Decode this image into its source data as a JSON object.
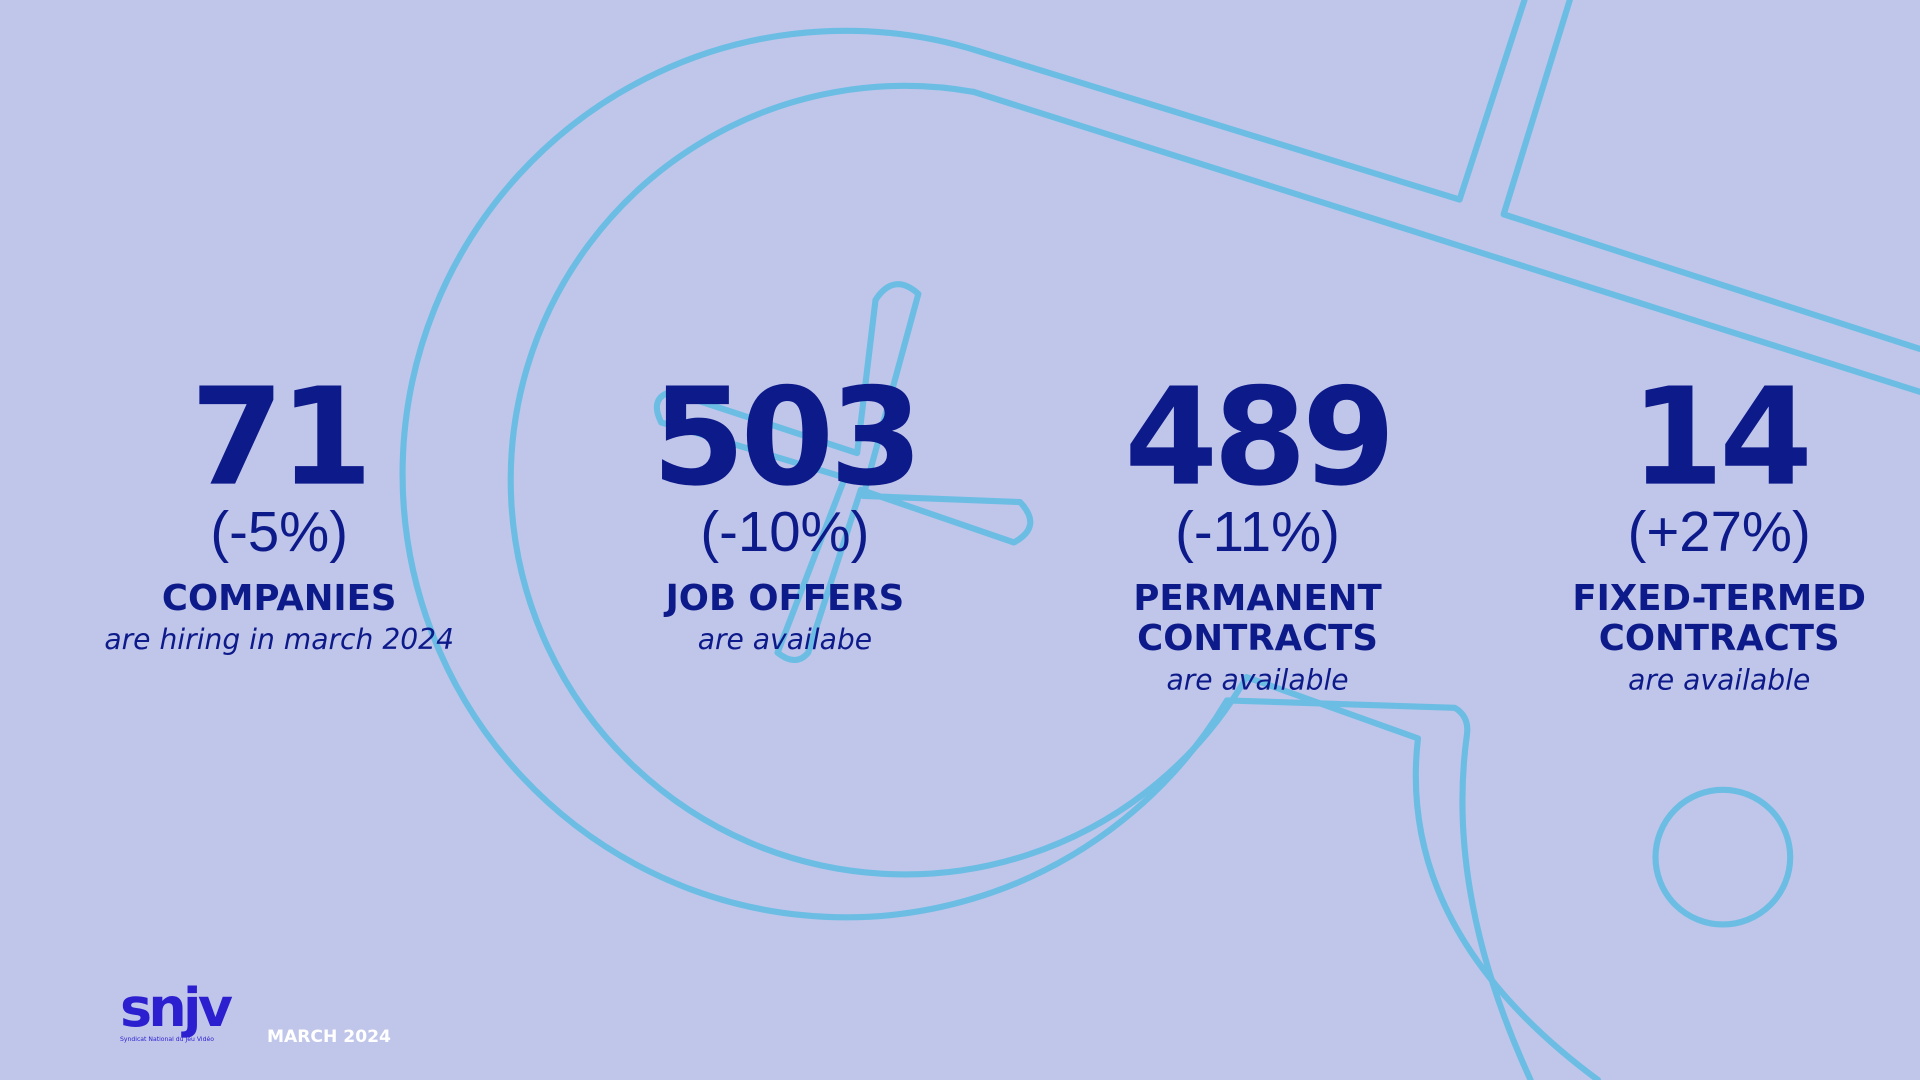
{
  "stats": [
    {
      "value": 71,
      "change": "(-5%)",
      "label": [
        "COMPANIES"
      ],
      "caption": "are hiring in march 2024"
    },
    {
      "value": 503,
      "change": "(-10%)",
      "label": [
        "JOB OFFERS"
      ],
      "caption": "are availabe"
    },
    {
      "value": 489,
      "change": "(-11%)",
      "label": [
        "PERMANENT",
        "CONTRACTS"
      ],
      "caption": "are available"
    },
    {
      "value": 14,
      "change": "(+27%)",
      "label": [
        "FIXED-TERMED",
        "CONTRACTS"
      ],
      "caption": "are available"
    }
  ],
  "footer": {
    "logo": "snjv",
    "logo_subtitle": "Syndicat National du Jeu Vidéo",
    "date": "MARCH 2024"
  }
}
